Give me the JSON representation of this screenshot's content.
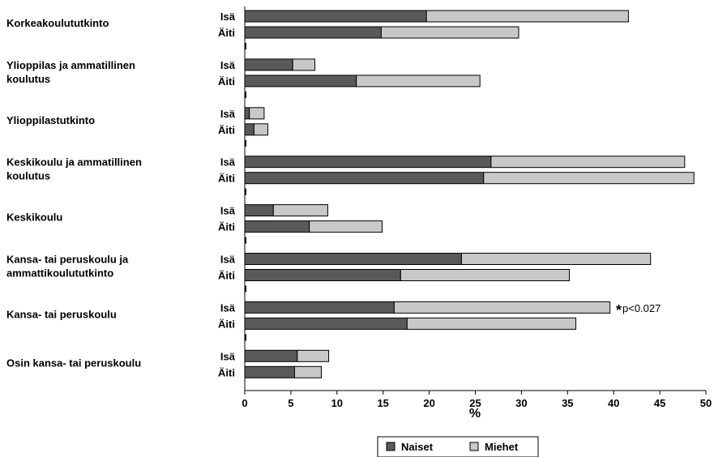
{
  "chart_data": {
    "type": "bar",
    "orientation": "horizontal",
    "stacked": true,
    "xlabel": "%",
    "xlim": [
      0,
      50
    ],
    "xticks": [
      "0",
      "5",
      "10",
      "15",
      "20",
      "25",
      "30",
      "35",
      "40",
      "45",
      "50"
    ],
    "colors": {
      "Naiset": "#595959",
      "Miehet": "#c8c8c8"
    },
    "legend": {
      "position": "bottom",
      "entries": [
        "Naiset",
        "Miehet"
      ]
    },
    "annotation": {
      "star": "*",
      "text": "p<0.027"
    },
    "groups": [
      {
        "label": [
          "Korkeakoulututkinto"
        ],
        "bars": [
          {
            "label": "Isä",
            "naiset": 19.7,
            "miehet": 21.9
          },
          {
            "label": "Äiti",
            "naiset": 14.8,
            "miehet": 14.9
          }
        ]
      },
      {
        "label": [
          "Ylioppilas ja ammatillinen",
          "koulutus"
        ],
        "bars": [
          {
            "label": "Isä",
            "naiset": 5.2,
            "miehet": 2.4
          },
          {
            "label": "Äiti",
            "naiset": 12.1,
            "miehet": 13.4
          }
        ]
      },
      {
        "label": [
          "Ylioppilastutkinto"
        ],
        "bars": [
          {
            "label": "Isä",
            "naiset": 0.5,
            "miehet": 1.6
          },
          {
            "label": "Äiti",
            "naiset": 1.0,
            "miehet": 1.5
          }
        ]
      },
      {
        "label": [
          "Keskikoulu ja ammatillinen",
          "koulutus"
        ],
        "bars": [
          {
            "label": "Isä",
            "naiset": 26.7,
            "miehet": 21.0
          },
          {
            "label": "Äiti",
            "naiset": 25.9,
            "miehet": 22.8
          }
        ]
      },
      {
        "label": [
          "Keskikoulu"
        ],
        "bars": [
          {
            "label": "Isä",
            "naiset": 3.1,
            "miehet": 5.9
          },
          {
            "label": "Äiti",
            "naiset": 7.0,
            "miehet": 7.9
          }
        ]
      },
      {
        "label": [
          "Kansa- tai peruskoulu ja",
          "ammattikoulututkinto"
        ],
        "bars": [
          {
            "label": "Isä",
            "naiset": 23.5,
            "miehet": 20.5
          },
          {
            "label": "Äiti",
            "naiset": 16.9,
            "miehet": 18.3
          }
        ]
      },
      {
        "label": [
          "Kansa- tai peruskoulu"
        ],
        "bars": [
          {
            "label": "Isä",
            "naiset": 16.2,
            "miehet": 23.4
          },
          {
            "label": "Äiti",
            "naiset": 17.6,
            "miehet": 18.3
          }
        ]
      },
      {
        "label": [
          "Osin kansa- tai peruskoulu"
        ],
        "bars": [
          {
            "label": "Isä",
            "naiset": 5.7,
            "miehet": 3.4
          },
          {
            "label": "Äiti",
            "naiset": 5.4,
            "miehet": 2.9
          }
        ]
      }
    ]
  }
}
